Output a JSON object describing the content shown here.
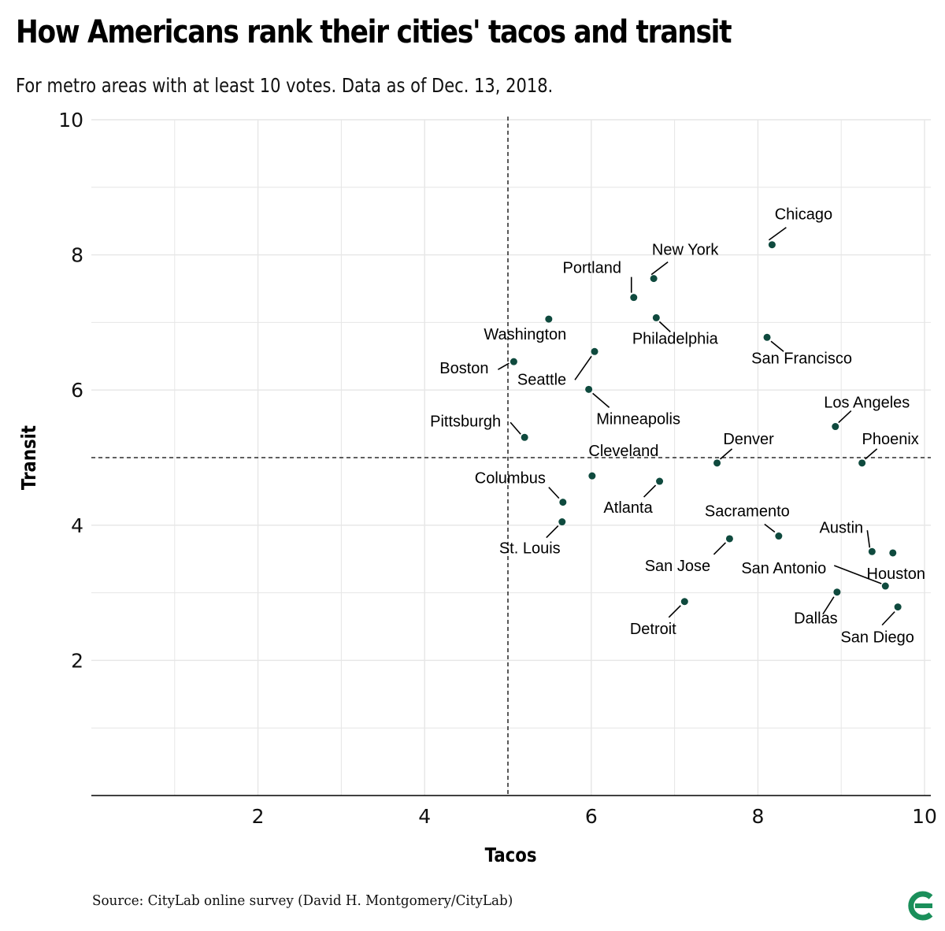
{
  "colors": {
    "point": "#0f4a3e",
    "logo": "#1a8f5a",
    "grid": "#e6e6e6",
    "axis": "#000000"
  },
  "icons": {
    "logo": "citylab-logo-icon"
  },
  "source": "Source: CityLab online survey (David H. Montgomery/CityLab)",
  "chart_data": {
    "type": "scatter",
    "title": "How Americans rank their cities' tacos and transit",
    "subtitle": "For metro areas with at least 10 votes. Data as of Dec. 13, 2018.",
    "xlabel": "Tacos",
    "ylabel": "Transit",
    "xlim": [
      0,
      10
    ],
    "ylim": [
      0,
      10
    ],
    "xticks": [
      2,
      4,
      6,
      8,
      10
    ],
    "yticks": [
      2,
      4,
      6,
      8,
      10
    ],
    "grid": true,
    "reference_lines": {
      "x": 5,
      "y": 5,
      "style": "dashed"
    },
    "points": [
      {
        "label": "Chicago",
        "x": 8.17,
        "y": 8.15
      },
      {
        "label": "New York",
        "x": 6.75,
        "y": 7.65
      },
      {
        "label": "Portland",
        "x": 6.51,
        "y": 7.37
      },
      {
        "label": "Philadelphia",
        "x": 6.78,
        "y": 7.07
      },
      {
        "label": "San Francisco",
        "x": 8.11,
        "y": 6.78
      },
      {
        "label": "Washington",
        "x": 5.49,
        "y": 7.05
      },
      {
        "label": "Boston",
        "x": 5.07,
        "y": 6.42
      },
      {
        "label": "Seattle",
        "x": 6.04,
        "y": 6.57
      },
      {
        "label": "Minneapolis",
        "x": 5.97,
        "y": 6.01
      },
      {
        "label": "Los Angeles",
        "x": 8.93,
        "y": 5.46
      },
      {
        "label": "Pittsburgh",
        "x": 5.2,
        "y": 5.3
      },
      {
        "label": "Denver",
        "x": 7.51,
        "y": 4.92
      },
      {
        "label": "Phoenix",
        "x": 9.25,
        "y": 4.92
      },
      {
        "label": "Cleveland",
        "x": 6.01,
        "y": 4.73
      },
      {
        "label": "Atlanta",
        "x": 6.82,
        "y": 4.65
      },
      {
        "label": "Columbus",
        "x": 5.66,
        "y": 4.34
      },
      {
        "label": "St. Louis",
        "x": 5.65,
        "y": 4.05
      },
      {
        "label": "Sacramento",
        "x": 8.25,
        "y": 3.84
      },
      {
        "label": "San Jose",
        "x": 7.66,
        "y": 3.8
      },
      {
        "label": "Austin",
        "x": 9.37,
        "y": 3.61
      },
      {
        "label": "Houston",
        "x": 9.62,
        "y": 3.59
      },
      {
        "label": "San Antonio",
        "x": 9.53,
        "y": 3.1
      },
      {
        "label": "Dallas",
        "x": 8.95,
        "y": 3.01
      },
      {
        "label": "Detroit",
        "x": 7.12,
        "y": 2.87
      },
      {
        "label": "San Diego",
        "x": 9.68,
        "y": 2.79
      }
    ]
  }
}
